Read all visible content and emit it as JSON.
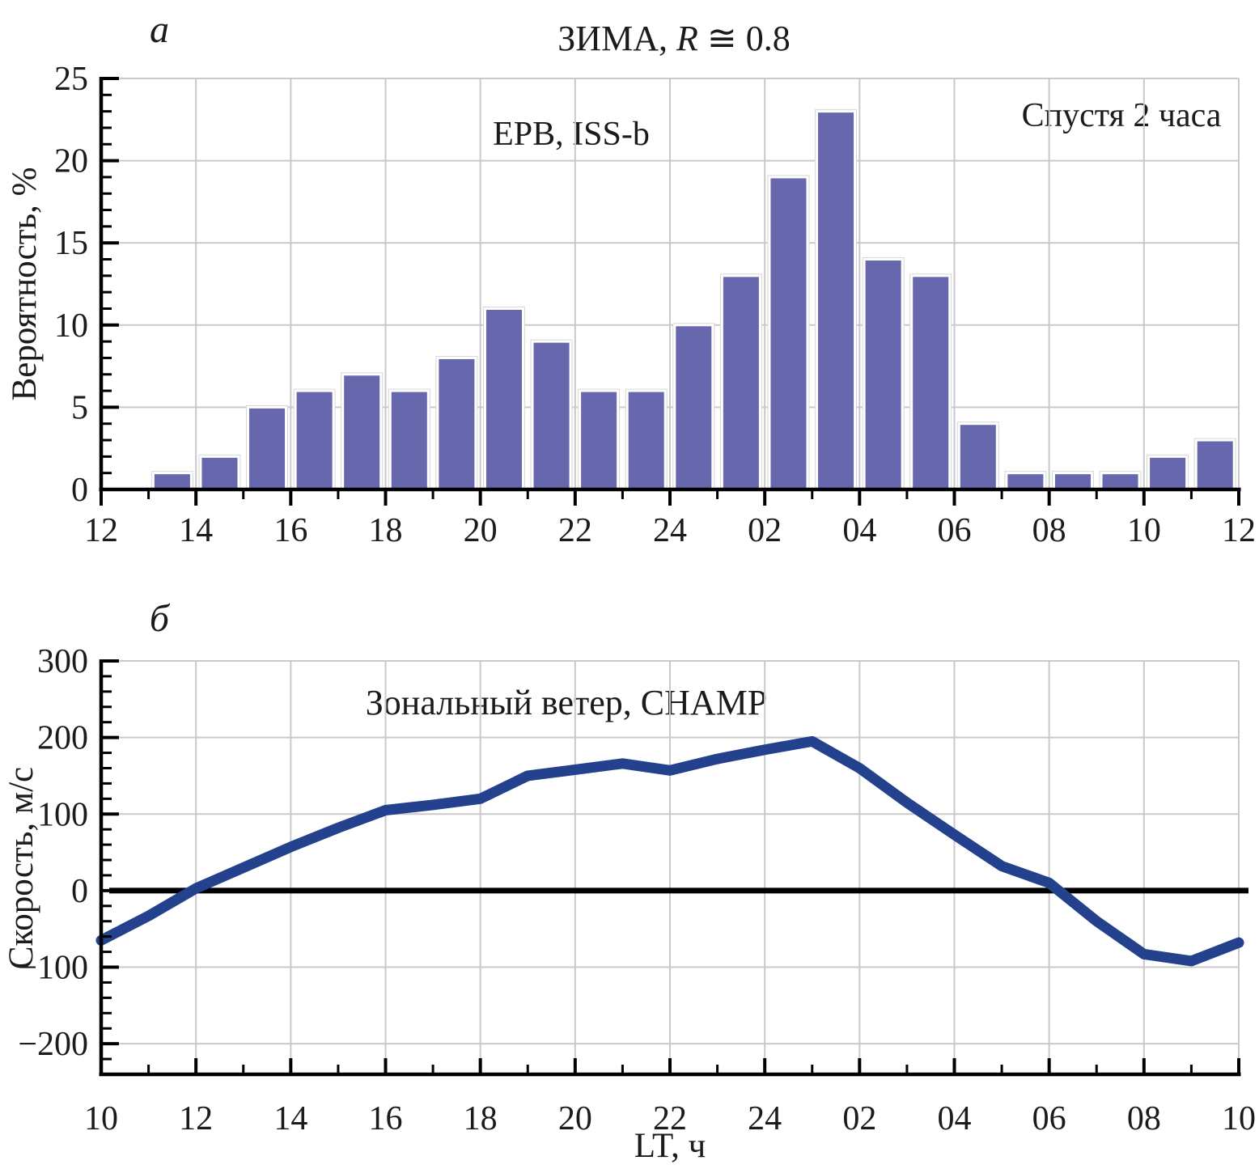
{
  "panels": {
    "a": {
      "label": "a"
    },
    "b": {
      "label": "б"
    }
  },
  "chart_data": [
    {
      "id": "a",
      "type": "bar",
      "title": "ЗИМА, R ≅ 0.8",
      "title_parts": {
        "prefix": "ЗИМА, ",
        "r": "R",
        "suffix": " ≅ 0.8"
      },
      "annotation_left": "EPB, ISS-b",
      "annotation_right": "Спустя 2 часа",
      "ylabel": "Вероятность, %",
      "xlabel": "",
      "x_start_hour": 12,
      "hours_span": 24,
      "x_tick_labels": [
        "12",
        "14",
        "16",
        "18",
        "20",
        "22",
        "24",
        "02",
        "04",
        "06",
        "08",
        "10",
        "12"
      ],
      "y_ticks": [
        0,
        5,
        10,
        15,
        20,
        25
      ],
      "y_tick_labels": [
        "0",
        "5",
        "10",
        "15",
        "20",
        "25"
      ],
      "ylim": [
        0,
        25
      ],
      "y_minor_step": 1,
      "bar_start_hour": 13,
      "bar_hour_labels": [
        "13",
        "14",
        "15",
        "16",
        "17",
        "18",
        "19",
        "20",
        "21",
        "22",
        "23",
        "24",
        "01",
        "02",
        "03",
        "04",
        "05",
        "06",
        "07",
        "08",
        "09",
        "10",
        "11"
      ],
      "bar_values": [
        1,
        2,
        5,
        6,
        7,
        6,
        8,
        11,
        9,
        6,
        6,
        10,
        13,
        19,
        23,
        14,
        13,
        4,
        1,
        1,
        1,
        2,
        3
      ],
      "bar_color": "#6667AC",
      "grid_color": "#c9c9c9",
      "legend_position": "none",
      "grid": true
    },
    {
      "id": "b",
      "type": "line",
      "title": "Зональный ветер, CHAMP",
      "ylabel": "Скорость, м/с",
      "xlabel": "LT, ч",
      "x_start_hour": 10,
      "hours_span": 24,
      "x_tick_labels": [
        "10",
        "12",
        "14",
        "16",
        "18",
        "20",
        "22",
        "24",
        "02",
        "04",
        "06",
        "08",
        "10"
      ],
      "y_ticks": [
        -200,
        -100,
        0,
        100,
        200,
        300
      ],
      "y_tick_labels": [
        "−200",
        "−100",
        "0",
        "100",
        "200",
        "300"
      ],
      "ylim": [
        -240,
        300
      ],
      "y_minor_step": 20,
      "x_hours": [
        10,
        11,
        12,
        13,
        14,
        15,
        16,
        17,
        18,
        19,
        20,
        21,
        22,
        23,
        24,
        25,
        26,
        27,
        28,
        29,
        30,
        31,
        32,
        33,
        34
      ],
      "x_hour_labels": [
        "10",
        "11",
        "12",
        "13",
        "14",
        "15",
        "16",
        "17",
        "18",
        "19",
        "20",
        "21",
        "22",
        "23",
        "24",
        "01",
        "02",
        "03",
        "04",
        "05",
        "06",
        "07",
        "08",
        "09",
        "10"
      ],
      "y_values": [
        -65,
        -33,
        3,
        30,
        57,
        82,
        105,
        112,
        120,
        150,
        158,
        166,
        157,
        172,
        184,
        195,
        160,
        115,
        73,
        32,
        10,
        -40,
        -83,
        -92,
        -68
      ],
      "line_color": "#24418E",
      "zero_line_color": "#000000",
      "grid_color": "#c9c9c9",
      "legend_position": "none",
      "grid": true
    }
  ]
}
